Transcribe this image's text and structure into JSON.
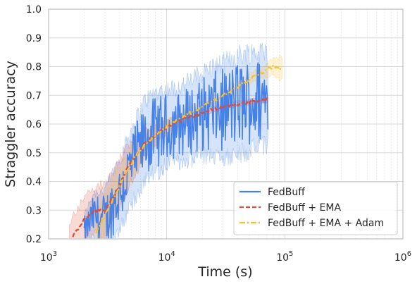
{
  "chart_data": {
    "type": "line",
    "title": "",
    "xlabel": "Time (s)",
    "ylabel": "Straggler accuracy",
    "xscale": "log",
    "xlim": [
      1000,
      1000000
    ],
    "ylim": [
      0.2,
      1.0
    ],
    "x_ticks": [
      {
        "value": 1000,
        "base": "10",
        "exp": "3"
      },
      {
        "value": 10000,
        "base": "10",
        "exp": "4"
      },
      {
        "value": 100000,
        "base": "10",
        "exp": "5"
      },
      {
        "value": 1000000,
        "base": "10",
        "exp": "6"
      }
    ],
    "y_ticks": [
      "0.2",
      "0.3",
      "0.4",
      "0.5",
      "0.6",
      "0.7",
      "0.8",
      "0.9",
      "1.0"
    ],
    "grid": true,
    "legend_position": "lower-right",
    "series": [
      {
        "name": "FedBuff",
        "color": "#4682e8",
        "style": "solid",
        "noisy": true,
        "x": [
          2000,
          2400,
          3000,
          4000,
          5000,
          6500,
          8000,
          10000,
          13000,
          17000,
          22000,
          30000,
          40000,
          50000,
          60000,
          72000
        ],
        "y": [
          0.22,
          0.28,
          0.26,
          0.36,
          0.45,
          0.54,
          0.57,
          0.59,
          0.6,
          0.62,
          0.64,
          0.65,
          0.67,
          0.68,
          0.68,
          0.69
        ],
        "band": [
          0.06,
          0.08,
          0.11,
          0.12,
          0.13,
          0.14,
          0.14,
          0.13,
          0.13,
          0.14,
          0.15,
          0.16,
          0.17,
          0.17,
          0.17,
          0.16
        ]
      },
      {
        "name": "FedBuff + EMA",
        "color": "#e24a33",
        "style": "dashed",
        "noisy": false,
        "x": [
          1500,
          1800,
          2100,
          2500,
          3000,
          3800,
          5000,
          6500,
          8500,
          11000,
          15000,
          20000,
          30000,
          40000,
          55000,
          72000
        ],
        "y": [
          0.19,
          0.24,
          0.28,
          0.3,
          0.3,
          0.37,
          0.47,
          0.53,
          0.57,
          0.6,
          0.62,
          0.64,
          0.66,
          0.67,
          0.68,
          0.685
        ],
        "band": [
          0.07,
          0.07,
          0.08,
          0.08,
          0.09,
          0.09,
          0.07,
          0.05,
          0.03,
          0.02,
          0.015,
          0.01,
          0.01,
          0.01,
          0.01,
          0.01
        ]
      },
      {
        "name": "FedBuff + EMA + Adam",
        "color": "#fbc02d",
        "style": "dashdot",
        "noisy": false,
        "x": [
          2500,
          3000,
          3600,
          4500,
          5500,
          7000,
          9000,
          12000,
          16000,
          22000,
          30000,
          40000,
          52000,
          65000,
          80000,
          95000
        ],
        "y": [
          0.22,
          0.28,
          0.35,
          0.43,
          0.49,
          0.54,
          0.58,
          0.61,
          0.64,
          0.67,
          0.7,
          0.73,
          0.76,
          0.78,
          0.8,
          0.79
        ],
        "band": [
          0.06,
          0.07,
          0.07,
          0.06,
          0.05,
          0.04,
          0.03,
          0.02,
          0.02,
          0.02,
          0.02,
          0.02,
          0.02,
          0.02,
          0.03,
          0.04
        ]
      }
    ]
  }
}
